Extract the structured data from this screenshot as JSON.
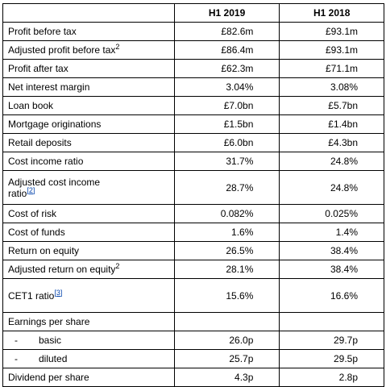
{
  "table": {
    "header": [
      "H1 2019",
      "H1 2018"
    ],
    "rows": [
      {
        "label": "Profit before tax",
        "values": [
          "£82.6m",
          "£93.1m"
        ]
      },
      {
        "label": "Adjusted profit before tax",
        "sup": "2",
        "values": [
          "£86.4m",
          "£93.1m"
        ]
      },
      {
        "label": "Profit after tax",
        "values": [
          "£62.3m",
          "£71.1m"
        ]
      },
      {
        "label": "Net interest margin",
        "values": [
          "3.04%",
          "3.08%"
        ]
      },
      {
        "label": "Loan book",
        "values": [
          "£7.0bn",
          "£5.7bn"
        ]
      },
      {
        "label": "Mortgage originations",
        "values": [
          "£1.5bn",
          "£1.4bn"
        ]
      },
      {
        "label": "Retail deposits",
        "values": [
          "£6.0bn",
          "£4.3bn"
        ]
      },
      {
        "label": "Cost income ratio",
        "values": [
          "31.7%",
          "24.8%"
        ]
      },
      {
        "label": "Adjusted cost income ratio",
        "link": "[2]",
        "values": [
          "28.7%",
          "24.8%"
        ]
      },
      {
        "label": "Cost of risk",
        "values": [
          "0.082%",
          "0.025%"
        ]
      },
      {
        "label": "Cost of funds",
        "values": [
          "1.6%",
          "1.4%"
        ]
      },
      {
        "label": "Return on equity",
        "values": [
          "26.5%",
          "38.4%"
        ]
      },
      {
        "label": "Adjusted return on equity",
        "sup": "2",
        "values": [
          "28.1%",
          "38.4%"
        ]
      },
      {
        "label": "CET1 ratio",
        "link": "[3]",
        "values": [
          "15.6%",
          "16.6%"
        ]
      },
      {
        "label": "Earnings per share",
        "values": [
          "",
          ""
        ]
      },
      {
        "bullet": "-",
        "label": "basic",
        "values": [
          "26.0p",
          "29.7p"
        ]
      },
      {
        "bullet": "-",
        "label": "diluted",
        "values": [
          "25.7p",
          "29.5p"
        ]
      },
      {
        "label": "Dividend per share",
        "values": [
          "4.3p",
          "2.8p"
        ]
      }
    ]
  }
}
